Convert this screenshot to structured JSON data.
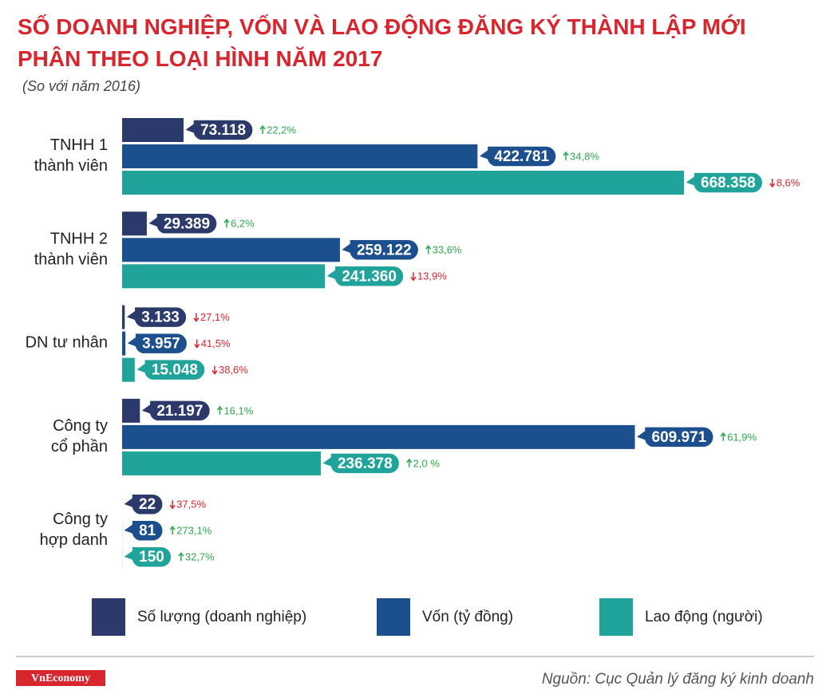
{
  "chart_data": {
    "type": "bar",
    "orientation": "horizontal",
    "title": "SỐ DOANH NGHIỆP, VỐN VÀ LAO ĐỘNG ĐĂNG KÝ THÀNH LẬP MỚI PHÂN THEO LOẠI HÌNH NĂM 2017",
    "subtitle": "(So với năm 2016)",
    "categories": [
      [
        "TNHH 1",
        "thành viên"
      ],
      [
        "TNHH 2",
        "thành viên"
      ],
      [
        "DN tư nhân"
      ],
      [
        "Công ty",
        "cổ phần"
      ],
      [
        "Công ty",
        "hợp danh"
      ]
    ],
    "xlim": [
      0,
      800000
    ],
    "series": [
      {
        "name": "Số lượng (doanh nghiệp)",
        "color": "#2c3a6b",
        "values": [
          73118,
          29389,
          3133,
          21197,
          22
        ],
        "value_labels": [
          "73.118",
          "29.389",
          "3.133",
          "21.197",
          "22"
        ],
        "changes": [
          22.2,
          6.2,
          -27.1,
          16.1,
          -37.5
        ],
        "change_labels": [
          "22,2%",
          "6,2%",
          "27,1%",
          "16,1%",
          "37,5%"
        ]
      },
      {
        "name": "Vốn (tỷ đồng)",
        "color": "#1b4f8e",
        "values": [
          422781,
          259122,
          3957,
          609971,
          81
        ],
        "value_labels": [
          "422.781",
          "259.122",
          "3.957",
          "609.971",
          "81"
        ],
        "changes": [
          34.8,
          33.6,
          -41.5,
          61.9,
          273.1
        ],
        "change_labels": [
          "34,8%",
          "33,6%",
          "41,5%",
          "61,9%",
          "273,1%"
        ]
      },
      {
        "name": "Lao động (người)",
        "color": "#1fa39a",
        "values": [
          668358,
          241360,
          15048,
          236378,
          150
        ],
        "value_labels": [
          "668.358",
          "241.360",
          "15.048",
          "236.378",
          "150"
        ],
        "changes": [
          -8.6,
          -13.9,
          -38.6,
          2.0,
          32.7
        ],
        "change_labels": [
          "8,6%",
          "13,9%",
          "38,6%",
          "2,0 %",
          "32,7%"
        ]
      }
    ],
    "up_color": "#2ea84a",
    "down_color": "#d7262e",
    "source": "Nguồn: Cục Quản lý đăng ký kinh doanh",
    "logo": "VnEconomy"
  }
}
